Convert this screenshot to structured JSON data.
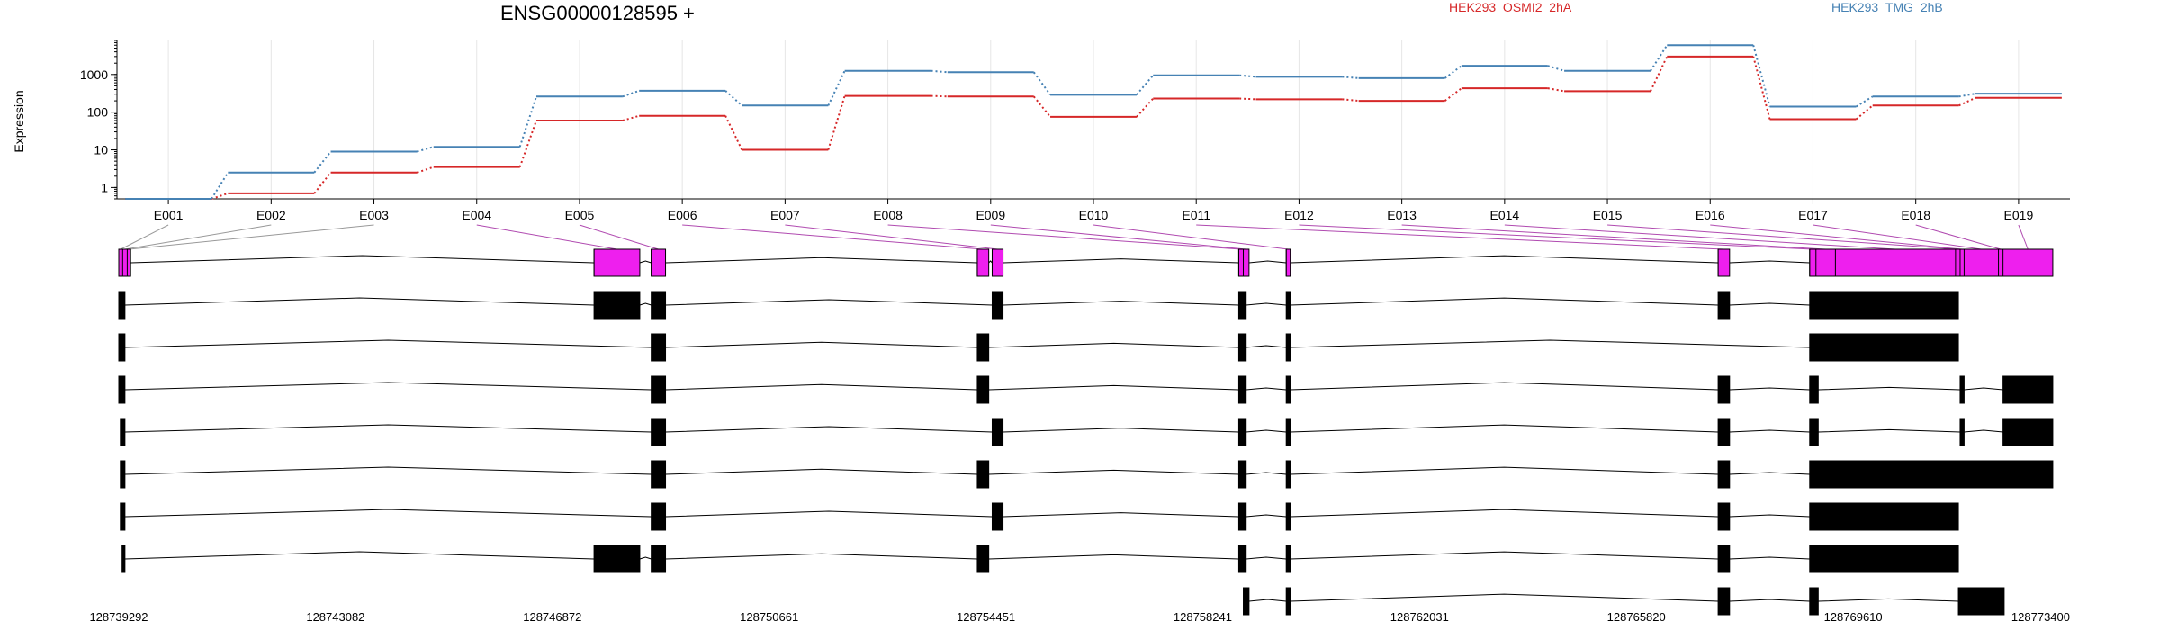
{
  "chart_data": {
    "type": "line",
    "title": "ENSG00000128595 +",
    "ylabel": "Expression",
    "xlabel": "",
    "yscale": "log",
    "ylim": [
      0.5,
      8000
    ],
    "yticks": [
      "1",
      "10",
      "100",
      "1000"
    ],
    "grid": true,
    "legend_position": "top",
    "categories": [
      "E001",
      "E002",
      "E003",
      "E004",
      "E005",
      "E006",
      "E007",
      "E008",
      "E009",
      "E010",
      "E011",
      "E012",
      "E013",
      "E014",
      "E015",
      "E016",
      "E017",
      "E018",
      "E019"
    ],
    "series": [
      {
        "name": "HEK293_OSMI2_2hA",
        "color": "#d62728",
        "values": [
          0.5,
          0.7,
          2.5,
          3.5,
          60,
          80,
          10,
          270,
          260,
          75,
          230,
          220,
          200,
          430,
          360,
          3000,
          65,
          150,
          240
        ]
      },
      {
        "name": "HEK293_TMG_2hB",
        "color": "#4682b4",
        "values": [
          0.5,
          2.5,
          9,
          12,
          260,
          370,
          150,
          1250,
          1150,
          290,
          950,
          870,
          800,
          1700,
          1250,
          6000,
          140,
          260,
          310
        ]
      }
    ],
    "genomic_axis": {
      "start": 128739292,
      "end": 128773400,
      "tick_labels": [
        "128739292",
        "128743082",
        "128746872",
        "128750661",
        "128754451",
        "128758241",
        "128762031",
        "128765820",
        "128769610",
        "128773400"
      ]
    },
    "exon_bins": [
      {
        "id": "E001",
        "start": 128739292,
        "end": 128739360
      },
      {
        "id": "E002",
        "start": 128739360,
        "end": 128739440
      },
      {
        "id": "E003",
        "start": 128739440,
        "end": 128739500
      },
      {
        "id": "E004",
        "start": 128747600,
        "end": 128748400
      },
      {
        "id": "E005",
        "start": 128748600,
        "end": 128748850
      },
      {
        "id": "E006",
        "start": 128754300,
        "end": 128754500
      },
      {
        "id": "E007",
        "start": 128754560,
        "end": 128754750
      },
      {
        "id": "E008",
        "start": 128758870,
        "end": 128758950
      },
      {
        "id": "E009",
        "start": 128758950,
        "end": 128759050
      },
      {
        "id": "E010",
        "start": 128759700,
        "end": 128759770
      },
      {
        "id": "E011",
        "start": 128767250,
        "end": 128767450
      },
      {
        "id": "E012",
        "start": 128768850,
        "end": 128768960
      },
      {
        "id": "E013",
        "start": 128768960,
        "end": 128769300
      },
      {
        "id": "E014",
        "start": 128769300,
        "end": 128771400
      },
      {
        "id": "E015",
        "start": 128771400,
        "end": 128771480
      },
      {
        "id": "E016",
        "start": 128771480,
        "end": 128771550
      },
      {
        "id": "E017",
        "start": 128771550,
        "end": 128772150
      },
      {
        "id": "E018",
        "start": 128772150,
        "end": 128772230
      },
      {
        "id": "E019",
        "start": 128772230,
        "end": 128773100
      }
    ],
    "transcripts": [
      [
        [
          128739292,
          128739400
        ],
        [
          128747600,
          128748400
        ],
        [
          128748600,
          128748850
        ],
        [
          128754560,
          128754750
        ],
        [
          128758870,
          128759000
        ],
        [
          128759700,
          128759770
        ],
        [
          128767250,
          128767450
        ],
        [
          128768850,
          128771450
        ]
      ],
      [
        [
          128739292,
          128739400
        ],
        [
          128748600,
          128748850
        ],
        [
          128754300,
          128754500
        ],
        [
          128758870,
          128759000
        ],
        [
          128759700,
          128759770
        ],
        [
          128768850,
          128771450
        ]
      ],
      [
        [
          128739292,
          128739400
        ],
        [
          128748600,
          128748850
        ],
        [
          128754300,
          128754500
        ],
        [
          128758870,
          128759000
        ],
        [
          128759700,
          128759770
        ],
        [
          128767250,
          128767450
        ],
        [
          128768850,
          128769000
        ],
        [
          128771480,
          128771550
        ],
        [
          128772230,
          128773100
        ]
      ],
      [
        [
          128739320,
          128739400
        ],
        [
          128748600,
          128748850
        ],
        [
          128754560,
          128754750
        ],
        [
          128758870,
          128759000
        ],
        [
          128759700,
          128759770
        ],
        [
          128767250,
          128767450
        ],
        [
          128768850,
          128769000
        ],
        [
          128771480,
          128771550
        ],
        [
          128772230,
          128773100
        ]
      ],
      [
        [
          128739320,
          128739400
        ],
        [
          128748600,
          128748850
        ],
        [
          128754300,
          128754500
        ],
        [
          128758870,
          128759000
        ],
        [
          128759700,
          128759770
        ],
        [
          128767250,
          128767450
        ],
        [
          128768850,
          128773100
        ]
      ],
      [
        [
          128739320,
          128739400
        ],
        [
          128748600,
          128748850
        ],
        [
          128754560,
          128754750
        ],
        [
          128758870,
          128759000
        ],
        [
          128759700,
          128759770
        ],
        [
          128767250,
          128767450
        ],
        [
          128768850,
          128771450
        ]
      ],
      [
        [
          128739350,
          128739400
        ],
        [
          128747600,
          128748400
        ],
        [
          128748600,
          128748850
        ],
        [
          128754300,
          128754500
        ],
        [
          128758870,
          128759000
        ],
        [
          128759700,
          128759770
        ],
        [
          128767250,
          128767450
        ],
        [
          128768850,
          128771450
        ]
      ],
      [
        [
          128758950,
          128759050
        ],
        [
          128759700,
          128759770
        ],
        [
          128767250,
          128767450
        ],
        [
          128768850,
          128769000
        ],
        [
          128771450,
          128772250
        ]
      ]
    ]
  }
}
